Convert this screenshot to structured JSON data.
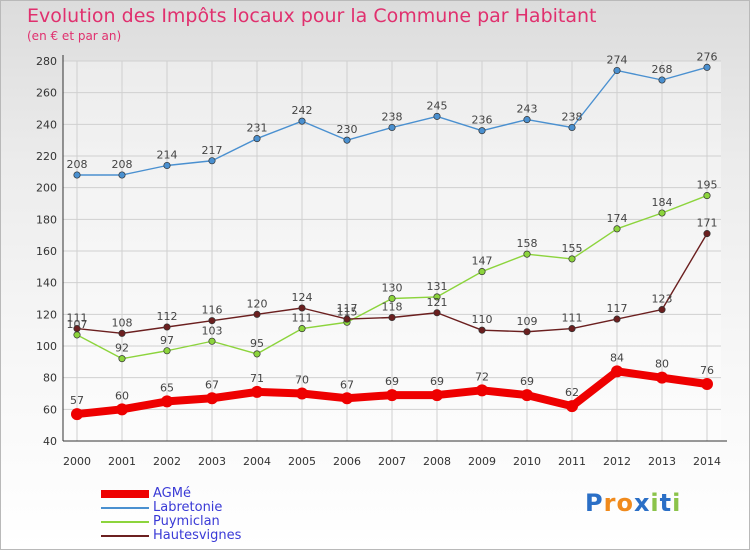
{
  "title": "Evolution des Impôts locaux pour la Commune par Habitant",
  "subtitle": "(en € et par an)",
  "logo": {
    "text": "Proxiti",
    "letters": [
      {
        "ch": "P",
        "color": "#2b6fc6"
      },
      {
        "ch": "r",
        "color": "#f08a1c"
      },
      {
        "ch": "o",
        "color": "#f08a1c"
      },
      {
        "ch": "x",
        "color": "#2b6fc6"
      },
      {
        "ch": "i",
        "color": "#8bc34a"
      },
      {
        "ch": "t",
        "color": "#2b6fc6"
      },
      {
        "ch": "i",
        "color": "#8bc34a"
      }
    ]
  },
  "chart_data": {
    "type": "line",
    "categories": [
      "2000",
      "2001",
      "2002",
      "2003",
      "2004",
      "2005",
      "2006",
      "2007",
      "2008",
      "2009",
      "2010",
      "2011",
      "2012",
      "2013",
      "2014"
    ],
    "ylim": [
      40,
      280
    ],
    "yticks": [
      40,
      60,
      80,
      100,
      120,
      140,
      160,
      180,
      200,
      220,
      240,
      260,
      280
    ],
    "grid": true,
    "legend_position": "bottom-left",
    "series": [
      {
        "name": "AGMé",
        "color": "#ee0000",
        "values": [
          57,
          60,
          65,
          67,
          71,
          70,
          67,
          69,
          69,
          72,
          69,
          62,
          84,
          80,
          76
        ]
      },
      {
        "name": "Labretonie",
        "color": "#4a90d0",
        "values": [
          208,
          208,
          214,
          217,
          231,
          242,
          230,
          238,
          245,
          236,
          243,
          238,
          274,
          268,
          276
        ]
      },
      {
        "name": "Puymiclan",
        "color": "#8cd43c",
        "values": [
          107,
          92,
          97,
          103,
          95,
          111,
          115,
          130,
          131,
          147,
          158,
          155,
          174,
          184,
          195
        ]
      },
      {
        "name": "Hautesvignes",
        "color": "#6b1f1f",
        "values": [
          111,
          108,
          112,
          116,
          120,
          124,
          117,
          118,
          121,
          110,
          109,
          111,
          117,
          123,
          171
        ]
      }
    ]
  }
}
